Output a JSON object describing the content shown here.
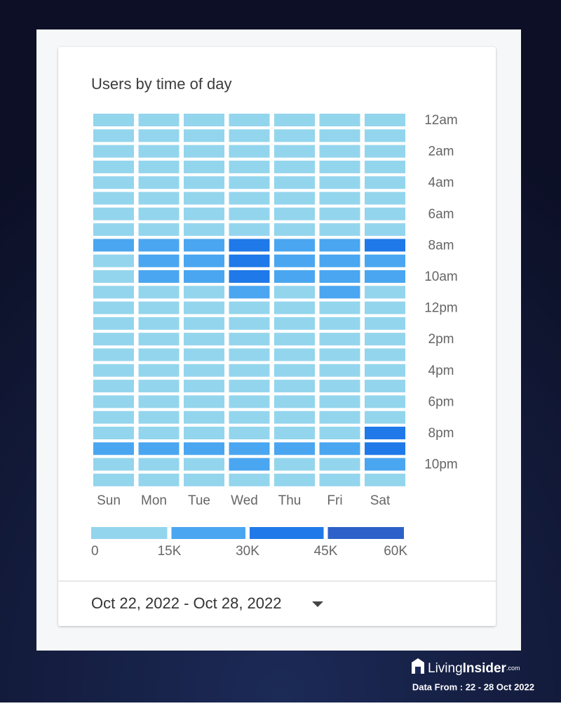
{
  "chart_data": {
    "type": "heatmap",
    "title": "Users by time of day",
    "x_categories": [
      "Sun",
      "Mon",
      "Tue",
      "Wed",
      "Thu",
      "Fri",
      "Sat"
    ],
    "y_categories": [
      "12am",
      null,
      "2am",
      null,
      "4am",
      null,
      "6am",
      null,
      "8am",
      null,
      "10am",
      null,
      "12pm",
      null,
      "2pm",
      null,
      "4pm",
      null,
      "6pm",
      null,
      "8pm",
      null,
      "10pm",
      null
    ],
    "values": [
      [
        9000,
        8000,
        8000,
        8000,
        8000,
        8000,
        9000
      ],
      [
        7000,
        6000,
        6000,
        6000,
        6000,
        6000,
        7000
      ],
      [
        5000,
        4000,
        4000,
        4000,
        4000,
        4000,
        5000
      ],
      [
        4000,
        3000,
        3000,
        3000,
        3000,
        3000,
        4000
      ],
      [
        4000,
        3000,
        3000,
        3000,
        3000,
        3000,
        4000
      ],
      [
        5000,
        5000,
        5000,
        5000,
        5000,
        5000,
        5000
      ],
      [
        8000,
        9000,
        9000,
        10000,
        9000,
        9000,
        9000
      ],
      [
        12000,
        13000,
        13000,
        14000,
        13000,
        13000,
        13000
      ],
      [
        20000,
        22000,
        22000,
        35000,
        23000,
        22000,
        33000
      ],
      [
        14000,
        24000,
        24000,
        36000,
        25000,
        24000,
        26000
      ],
      [
        13000,
        24000,
        25000,
        37000,
        25000,
        25000,
        27000
      ],
      [
        12000,
        13000,
        14000,
        22000,
        14000,
        20000,
        14000
      ],
      [
        11000,
        12000,
        12000,
        13000,
        12000,
        12000,
        12000
      ],
      [
        11000,
        11000,
        11000,
        12000,
        11000,
        11000,
        12000
      ],
      [
        10000,
        11000,
        11000,
        12000,
        11000,
        11000,
        11000
      ],
      [
        10000,
        11000,
        11000,
        11000,
        11000,
        11000,
        11000
      ],
      [
        10000,
        11000,
        11000,
        11000,
        11000,
        11000,
        11000
      ],
      [
        11000,
        11000,
        11000,
        12000,
        11000,
        11000,
        12000
      ],
      [
        12000,
        12000,
        12000,
        13000,
        12000,
        12000,
        13000
      ],
      [
        13000,
        13000,
        13000,
        14000,
        13000,
        13000,
        14000
      ],
      [
        14000,
        14000,
        14000,
        14000,
        14000,
        14000,
        34000
      ],
      [
        21000,
        20000,
        20000,
        21000,
        20000,
        20000,
        32000
      ],
      [
        14000,
        14000,
        14000,
        19000,
        14000,
        14000,
        20000
      ],
      [
        11000,
        11000,
        11000,
        12000,
        11000,
        11000,
        13000
      ]
    ],
    "scale": {
      "ticks": [
        0,
        {
          "value": 15000,
          "label": "15K"
        },
        {
          "value": 30000,
          "label": "30K"
        },
        {
          "value": 45000,
          "label": "45K"
        },
        {
          "value": 60000,
          "label": "60K"
        }
      ],
      "colors": [
        "#93d5ed",
        "#4aa6f0",
        "#1f79e8",
        "#2d61c9"
      ]
    }
  },
  "date_range": "Oct 22, 2022 - Oct 28, 2022",
  "brand": {
    "part1": "Living",
    "part2": "Insider",
    "suffix": ".com",
    "note": "Data From : 22 - 28 Oct 2022"
  }
}
